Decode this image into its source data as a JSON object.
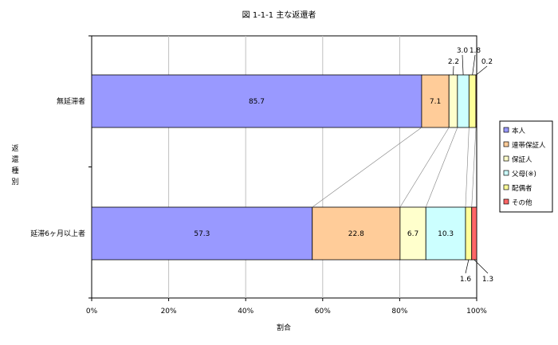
{
  "chart_data": {
    "type": "bar",
    "orientation": "horizontal",
    "stacked": true,
    "percent": true,
    "title": "図 1-1-1  主な返還者",
    "xlabel": "割合",
    "ylabel": "返還種別",
    "xlim": [
      0,
      100
    ],
    "x_ticks": [
      "0%",
      "20%",
      "40%",
      "60%",
      "80%",
      "100%"
    ],
    "grid": "vertical",
    "legend_position": "right",
    "categories": [
      "無延滞者",
      "延滞6ヶ月以上者"
    ],
    "series": [
      {
        "name": "本人",
        "color": "#9999ff",
        "values": [
          85.7,
          57.3
        ]
      },
      {
        "name": "連帯保証人",
        "color": "#ffcc99",
        "values": [
          7.1,
          22.8
        ]
      },
      {
        "name": "保証人",
        "color": "#ffffcc",
        "values": [
          2.2,
          6.7
        ]
      },
      {
        "name": "父母(※)",
        "color": "#ccffff",
        "values": [
          3.0,
          10.3
        ]
      },
      {
        "name": "配偶者",
        "color": "#ffff99",
        "values": [
          1.8,
          1.6
        ]
      },
      {
        "name": "その他",
        "color": "#ff6666",
        "values": [
          0.2,
          1.3
        ]
      }
    ]
  }
}
